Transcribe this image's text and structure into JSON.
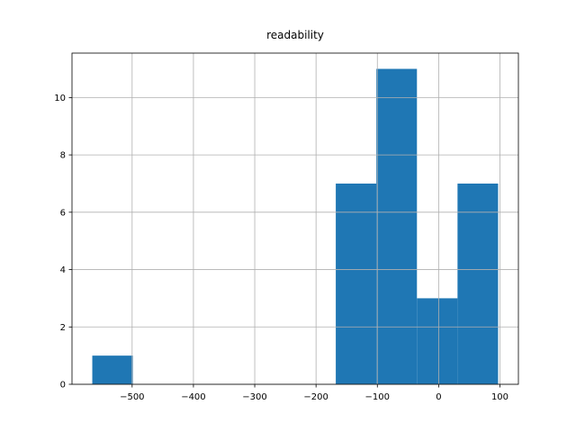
{
  "chart_data": {
    "type": "histogram",
    "title": "readability",
    "bins": [
      -565,
      -498.8,
      -432.6,
      -366.4,
      -300.2,
      -234,
      -167.8,
      -101.6,
      -35.4,
      30.8,
      97
    ],
    "counts": [
      1,
      0,
      0,
      0,
      0,
      0,
      7,
      11,
      3,
      7
    ],
    "color": "#1f77b4",
    "xlim": [
      -598.1,
      130.1
    ],
    "xticks": [
      {
        "value": -500,
        "label": "−500"
      },
      {
        "value": -400,
        "label": "−400"
      },
      {
        "value": -300,
        "label": "−300"
      },
      {
        "value": -200,
        "label": "−200"
      },
      {
        "value": -100,
        "label": "−100"
      },
      0,
      100
    ],
    "ylim": [
      0,
      11.55
    ],
    "yticks": [
      0,
      2,
      4,
      6,
      8,
      10
    ],
    "grid": true
  }
}
